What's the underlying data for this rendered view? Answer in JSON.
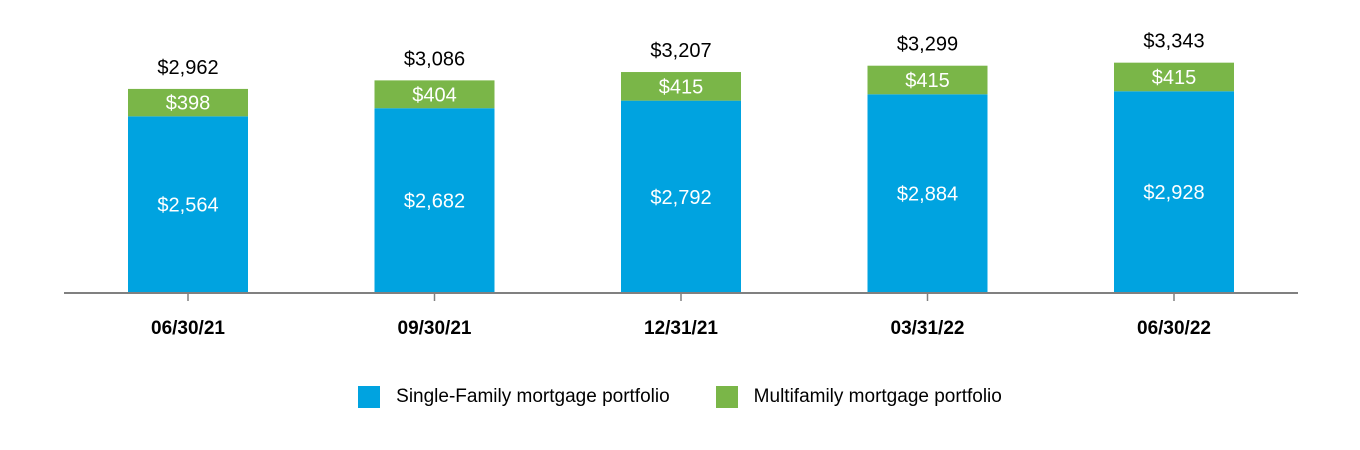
{
  "chart_data": {
    "type": "bar",
    "stacked": true,
    "categories": [
      "06/30/21",
      "09/30/21",
      "12/31/21",
      "03/31/22",
      "06/30/22"
    ],
    "series": [
      {
        "name": "Single-Family mortgage portfolio",
        "color": "#00A3E0",
        "values": [
          2564,
          2682,
          2792,
          2884,
          2928
        ],
        "labels": [
          "$2,564",
          "$2,682",
          "$2,792",
          "$2,884",
          "$2,928"
        ]
      },
      {
        "name": "Multifamily mortgage portfolio",
        "color": "#7AB648",
        "values": [
          398,
          404,
          415,
          415,
          415
        ],
        "labels": [
          "$398",
          "$404",
          "$415",
          "$415",
          "$415"
        ]
      }
    ],
    "totals": [
      2962,
      3086,
      3207,
      3299,
      3343
    ],
    "total_labels": [
      "$2,962",
      "$3,086",
      "$3,207",
      "$3,299",
      "$3,343"
    ],
    "axis_color": "#808080",
    "legend_position": "bottom"
  }
}
